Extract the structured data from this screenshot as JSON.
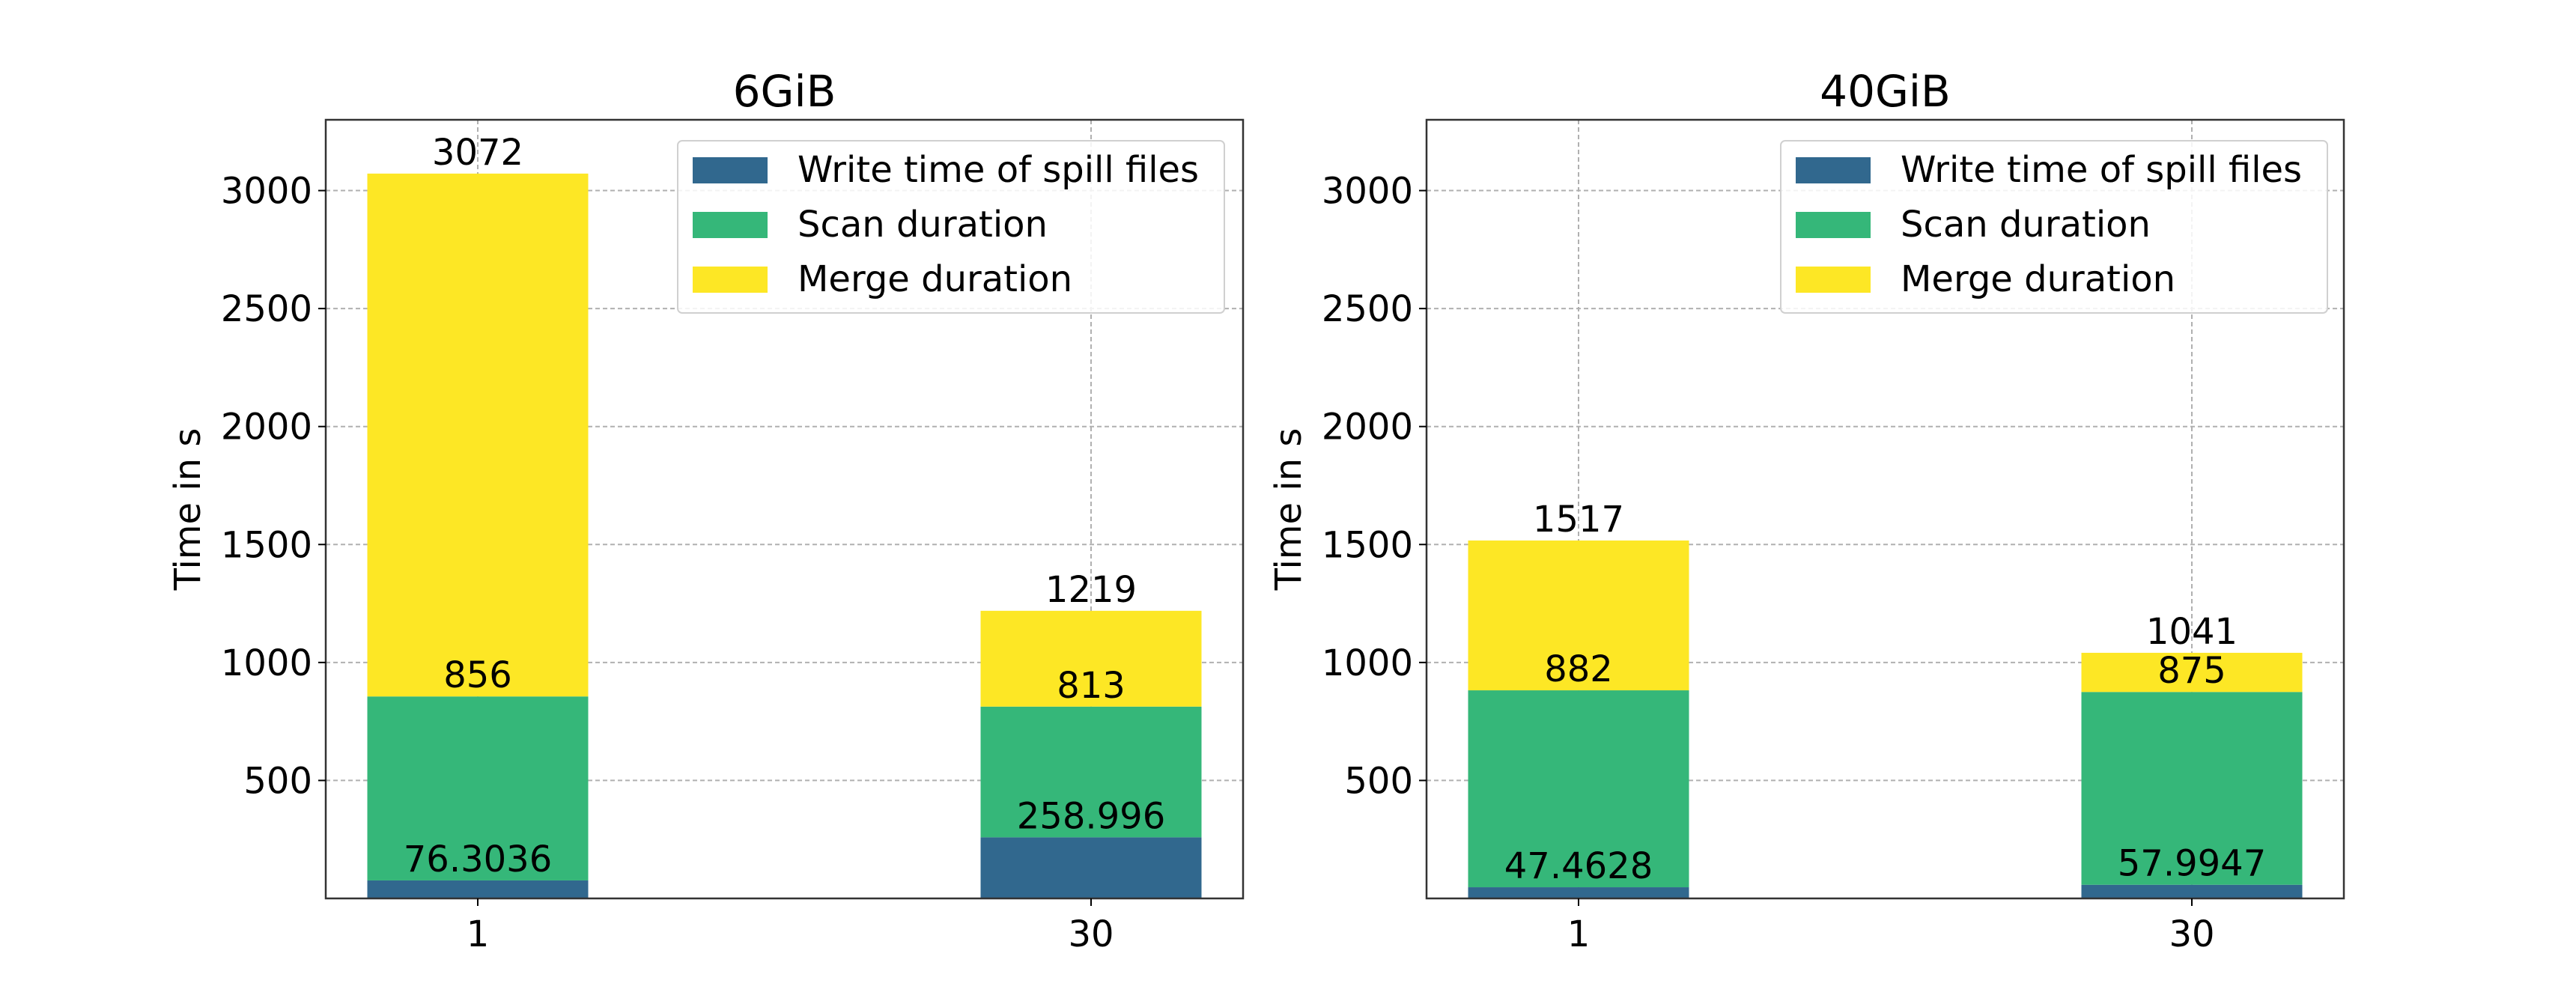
{
  "chart_data": [
    {
      "type": "bar",
      "stacked": true,
      "title": "6GiB",
      "xlabel": "",
      "ylabel": "Time in s",
      "ylim": [
        0,
        3300
      ],
      "yticks": [
        500,
        1000,
        1500,
        2000,
        2500,
        3000
      ],
      "grid": true,
      "legend_position": "top-right",
      "categories": [
        "1",
        "30"
      ],
      "series": [
        {
          "name": "Write time of spill files",
          "color": "#31688e",
          "values": [
            76.3036,
            258.996
          ],
          "labels": [
            "76.3036",
            "258.996"
          ]
        },
        {
          "name": "Scan duration",
          "color": "#35b779",
          "values": [
            779.6964,
            554.004
          ],
          "labels": [
            "856",
            "813"
          ]
        },
        {
          "name": "Merge duration",
          "color": "#fde725",
          "values": [
            2216,
            406
          ],
          "labels": [
            "3072",
            "1219"
          ]
        }
      ]
    },
    {
      "type": "bar",
      "stacked": true,
      "title": "40GiB",
      "xlabel": "",
      "ylabel": "Time in s",
      "ylim": [
        0,
        3300
      ],
      "yticks": [
        500,
        1000,
        1500,
        2000,
        2500,
        3000
      ],
      "grid": true,
      "legend_position": "top-right",
      "categories": [
        "1",
        "30"
      ],
      "series": [
        {
          "name": "Write time of spill files",
          "color": "#31688e",
          "values": [
            47.4628,
            57.9947
          ],
          "labels": [
            "47.4628",
            "57.9947"
          ]
        },
        {
          "name": "Scan duration",
          "color": "#35b779",
          "values": [
            834.5372,
            817.0053
          ],
          "labels": [
            "882",
            "875"
          ]
        },
        {
          "name": "Merge duration",
          "color": "#fde725",
          "values": [
            635,
            166
          ],
          "labels": [
            "1517",
            "1041"
          ]
        }
      ]
    }
  ]
}
